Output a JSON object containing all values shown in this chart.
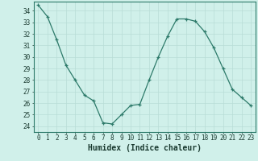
{
  "x": [
    0,
    1,
    2,
    3,
    4,
    5,
    6,
    7,
    8,
    9,
    10,
    11,
    12,
    13,
    14,
    15,
    16,
    17,
    18,
    19,
    20,
    21,
    22,
    23
  ],
  "y": [
    34.5,
    33.5,
    31.5,
    29.3,
    28.0,
    26.7,
    26.2,
    24.3,
    24.2,
    25.0,
    25.8,
    25.9,
    28.0,
    30.0,
    31.8,
    33.3,
    33.3,
    33.1,
    32.2,
    30.8,
    29.0,
    27.2,
    26.5,
    25.8
  ],
  "xlabel": "Humidex (Indice chaleur)",
  "xlim": [
    -0.5,
    23.5
  ],
  "ylim": [
    23.5,
    34.8
  ],
  "yticks": [
    24,
    25,
    26,
    27,
    28,
    29,
    30,
    31,
    32,
    33,
    34
  ],
  "xticks": [
    0,
    1,
    2,
    3,
    4,
    5,
    6,
    7,
    8,
    9,
    10,
    11,
    12,
    13,
    14,
    15,
    16,
    17,
    18,
    19,
    20,
    21,
    22,
    23
  ],
  "line_color": "#2d7a6a",
  "bg_color": "#d0f0ea",
  "grid_color": "#b8ddd6",
  "text_color": "#1a3a30",
  "label_fontsize": 6.5,
  "tick_fontsize": 5.5,
  "xlabel_fontsize": 7.0
}
